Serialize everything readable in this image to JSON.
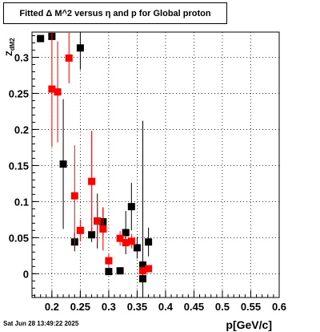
{
  "title": "Fitted Δ M^2 versus η and p for Global proton",
  "timestamp": "Sat Jun 28 13:49:22 2025",
  "chart_data": {
    "type": "scatter",
    "title": "Fitted Δ M^2 versus η and p for Global proton",
    "xlabel": "p[GeV/c]",
    "ylabel": "Z_dM2",
    "xlim": [
      0.165,
      0.6
    ],
    "ylim": [
      -0.033,
      0.335
    ],
    "x_ticks": [
      "0.2",
      "0.25",
      "0.3",
      "0.35",
      "0.4",
      "0.45",
      "0.5",
      "0.55",
      "0.6"
    ],
    "y_ticks": [
      "0",
      "0.05",
      "0.1",
      "0.15",
      "0.2",
      "0.25",
      "0.3"
    ],
    "grid": true,
    "series": [
      {
        "color": "#000000",
        "points": [
          {
            "x": 0.18,
            "y": 0.326,
            "err": 0.004
          },
          {
            "x": 0.2,
            "y": 0.329,
            "err": 0.004
          },
          {
            "x": 0.22,
            "y": 0.152,
            "err": 0.09
          },
          {
            "x": 0.24,
            "y": 0.044,
            "err": 0.013
          },
          {
            "x": 0.25,
            "y": 0.313,
            "err": 0.03
          },
          {
            "x": 0.27,
            "y": 0.054,
            "err": 0.01
          },
          {
            "x": 0.28,
            "y": 0.073,
            "err": 0.038
          },
          {
            "x": 0.29,
            "y": 0.072,
            "err": 0.02
          },
          {
            "x": 0.3,
            "y": 0.003,
            "err": 0.004
          },
          {
            "x": 0.32,
            "y": 0.004,
            "err": 0.005
          },
          {
            "x": 0.33,
            "y": 0.057,
            "err": 0.03
          },
          {
            "x": 0.34,
            "y": 0.093,
            "err": 0.033
          },
          {
            "x": 0.35,
            "y": 0.036,
            "err": 0.015
          },
          {
            "x": 0.36,
            "y": -0.007,
            "err": 0.004
          },
          {
            "x": 0.36,
            "y": 0.012,
            "err": 0.2
          },
          {
            "x": 0.37,
            "y": 0.044,
            "err": 0.02
          }
        ]
      },
      {
        "color": "#ff0000",
        "points": [
          {
            "x": 0.2,
            "y": 0.256,
            "err": 0.08
          },
          {
            "x": 0.21,
            "y": 0.252,
            "err": 0.07
          },
          {
            "x": 0.23,
            "y": 0.299,
            "err": 0.035
          },
          {
            "x": 0.24,
            "y": 0.108,
            "err": 0.07
          },
          {
            "x": 0.25,
            "y": 0.06,
            "err": 0.015
          },
          {
            "x": 0.27,
            "y": 0.128,
            "err": 0.07
          },
          {
            "x": 0.28,
            "y": 0.073,
            "err": 0.03
          },
          {
            "x": 0.29,
            "y": 0.062,
            "err": 0.03
          },
          {
            "x": 0.3,
            "y": 0.018,
            "err": 0.01
          },
          {
            "x": 0.32,
            "y": 0.049,
            "err": 0.01
          },
          {
            "x": 0.33,
            "y": 0.043,
            "err": 0.01
          },
          {
            "x": 0.34,
            "y": 0.045,
            "err": 0.01
          },
          {
            "x": 0.36,
            "y": 0.004,
            "err": 0.004
          },
          {
            "x": 0.37,
            "y": 0.007,
            "err": 0.004
          }
        ]
      }
    ]
  }
}
